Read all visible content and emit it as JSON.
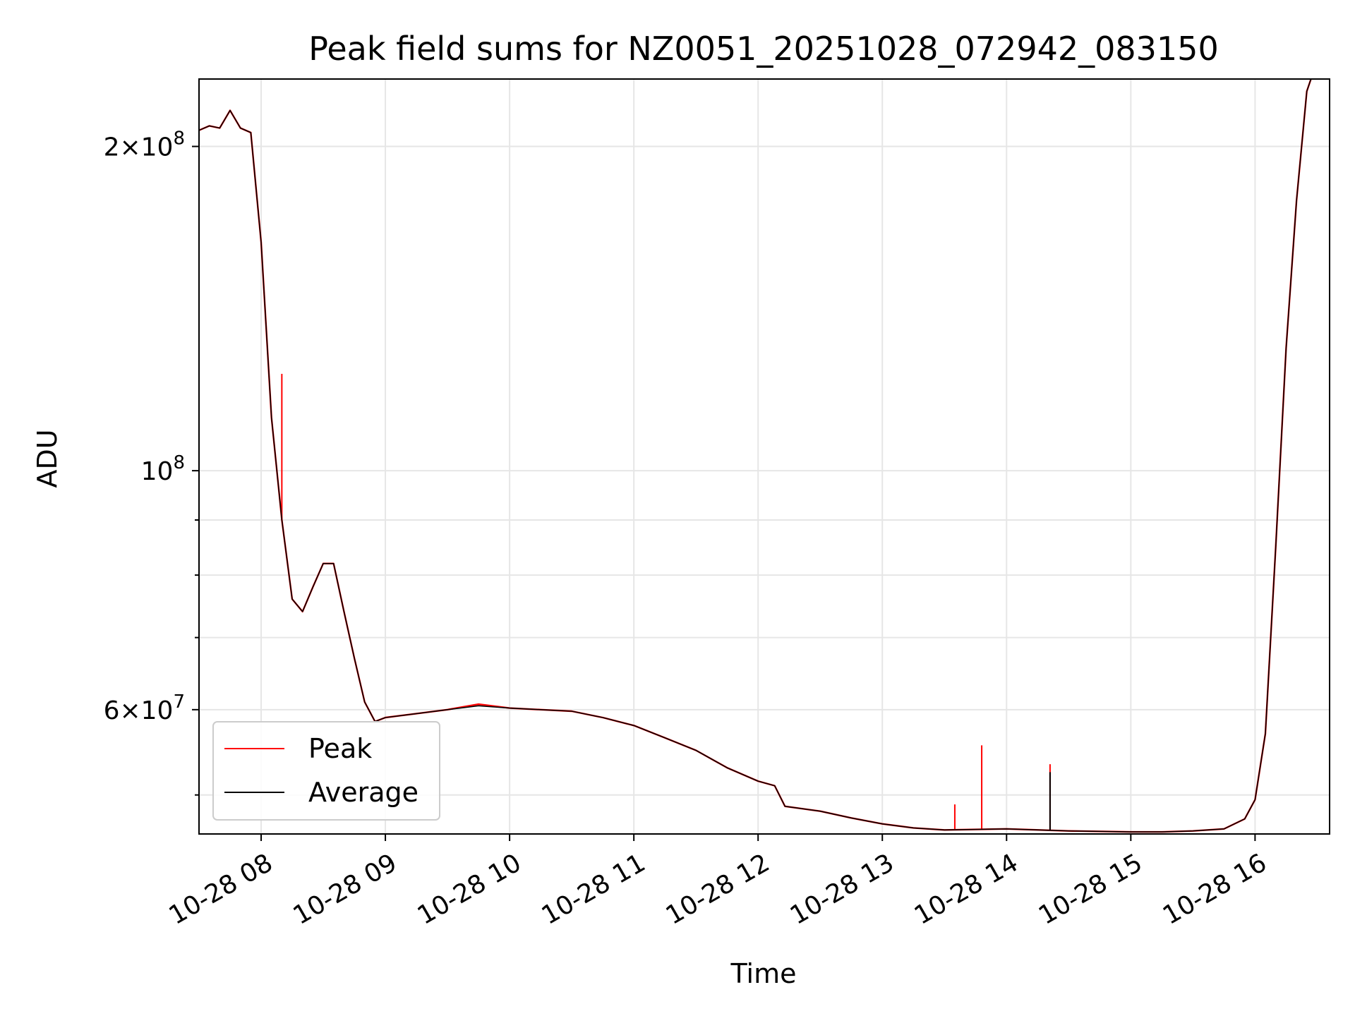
{
  "chart_data": {
    "type": "line",
    "title": "Peak field sums for NZ0051_20251028_072942_083150",
    "xlabel": "Time",
    "ylabel": "ADU",
    "yscale": "log",
    "xlim": [
      "10-28 07:30",
      "10-28 16:36"
    ],
    "ylim": [
      46000000,
      231000000
    ],
    "grid": true,
    "legend_position": "lower-left",
    "x_ticks": [
      "10-28 08",
      "10-28 09",
      "10-28 10",
      "10-28 11",
      "10-28 12",
      "10-28 13",
      "10-28 14",
      "10-28 15",
      "10-28 16"
    ],
    "y_ticks": [
      {
        "value": 200000000,
        "mantissa": "2",
        "exponent": "8"
      },
      {
        "value": 100000000,
        "mantissa": "",
        "exponent": "8"
      },
      {
        "value": 60000000,
        "mantissa": "6",
        "exponent": "7"
      }
    ],
    "y_minor_ticks": [
      50000000,
      70000000,
      80000000,
      90000000
    ],
    "series": [
      {
        "name": "Peak",
        "color": "#ff0000",
        "points": [
          [
            "07:30",
            207
          ],
          [
            "07:35",
            209
          ],
          [
            "07:40",
            208
          ],
          [
            "07:45",
            216
          ],
          [
            "07:50",
            208
          ],
          [
            "07:55",
            206
          ],
          [
            "08:00",
            163
          ],
          [
            "08:05",
            112
          ],
          [
            "08:10",
            90
          ],
          [
            "08:15",
            76
          ],
          [
            "08:20",
            74
          ],
          [
            "08:25",
            78
          ],
          [
            "08:30",
            82
          ],
          [
            "08:35",
            82
          ],
          [
            "08:40",
            74
          ],
          [
            "08:45",
            67
          ],
          [
            "08:50",
            61
          ],
          [
            "08:55",
            58.5
          ],
          [
            "09:00",
            59
          ],
          [
            "09:15",
            59.5
          ],
          [
            "09:30",
            60
          ],
          [
            "09:45",
            60.7
          ],
          [
            "10:00",
            60.2
          ],
          [
            "10:15",
            60
          ],
          [
            "10:30",
            59.8
          ],
          [
            "10:45",
            59
          ],
          [
            "11:00",
            58
          ],
          [
            "11:15",
            56.5
          ],
          [
            "11:30",
            55
          ],
          [
            "11:45",
            53
          ],
          [
            "12:00",
            51.5
          ],
          [
            "12:08",
            51
          ],
          [
            "12:13",
            48.8
          ],
          [
            "12:30",
            48.3
          ],
          [
            "12:45",
            47.6
          ],
          [
            "13:00",
            47
          ],
          [
            "13:15",
            46.6
          ],
          [
            "13:30",
            46.4
          ],
          [
            "14:00",
            46.5
          ],
          [
            "14:30",
            46.3
          ],
          [
            "15:00",
            46.2
          ],
          [
            "15:15",
            46.2
          ],
          [
            "15:30",
            46.3
          ],
          [
            "15:45",
            46.5
          ],
          [
            "15:55",
            47.5
          ],
          [
            "16:00",
            49.5
          ],
          [
            "16:05",
            57
          ],
          [
            "16:10",
            85
          ],
          [
            "16:15",
            130
          ],
          [
            "16:20",
            178
          ],
          [
            "16:25",
            225
          ],
          [
            "16:27",
            231
          ]
        ],
        "spikes": [
          {
            "time": "08:10",
            "value": 123
          },
          {
            "time": "13:35",
            "value": 49
          },
          {
            "time": "13:48",
            "value": 55.6
          },
          {
            "time": "14:21",
            "value": 53.4
          }
        ]
      },
      {
        "name": "Average",
        "color": "#000000",
        "points": [
          [
            "07:30",
            207
          ],
          [
            "07:35",
            209
          ],
          [
            "07:40",
            208
          ],
          [
            "07:45",
            216
          ],
          [
            "07:50",
            208
          ],
          [
            "07:55",
            206
          ],
          [
            "08:00",
            163
          ],
          [
            "08:05",
            112
          ],
          [
            "08:10",
            90
          ],
          [
            "08:15",
            76
          ],
          [
            "08:20",
            74
          ],
          [
            "08:25",
            78
          ],
          [
            "08:30",
            82
          ],
          [
            "08:35",
            82
          ],
          [
            "08:40",
            74
          ],
          [
            "08:45",
            67
          ],
          [
            "08:50",
            61
          ],
          [
            "08:55",
            58.5
          ],
          [
            "09:00",
            59
          ],
          [
            "09:15",
            59.5
          ],
          [
            "09:30",
            60
          ],
          [
            "09:45",
            60.5
          ],
          [
            "10:00",
            60.2
          ],
          [
            "10:15",
            60
          ],
          [
            "10:30",
            59.8
          ],
          [
            "10:45",
            59
          ],
          [
            "11:00",
            58
          ],
          [
            "11:15",
            56.5
          ],
          [
            "11:30",
            55
          ],
          [
            "11:45",
            53
          ],
          [
            "12:00",
            51.5
          ],
          [
            "12:08",
            51
          ],
          [
            "12:13",
            48.8
          ],
          [
            "12:30",
            48.3
          ],
          [
            "12:45",
            47.6
          ],
          [
            "13:00",
            47
          ],
          [
            "13:15",
            46.6
          ],
          [
            "13:30",
            46.4
          ],
          [
            "14:00",
            46.5
          ],
          [
            "14:30",
            46.3
          ],
          [
            "15:00",
            46.2
          ],
          [
            "15:15",
            46.2
          ],
          [
            "15:30",
            46.3
          ],
          [
            "15:45",
            46.5
          ],
          [
            "15:55",
            47.5
          ],
          [
            "16:00",
            49.5
          ],
          [
            "16:05",
            57
          ],
          [
            "16:10",
            85
          ],
          [
            "16:15",
            130
          ],
          [
            "16:20",
            178
          ],
          [
            "16:25",
            225
          ],
          [
            "16:27",
            231
          ]
        ],
        "spikes": [
          {
            "time": "14:21",
            "value": 52.5
          }
        ]
      }
    ]
  }
}
